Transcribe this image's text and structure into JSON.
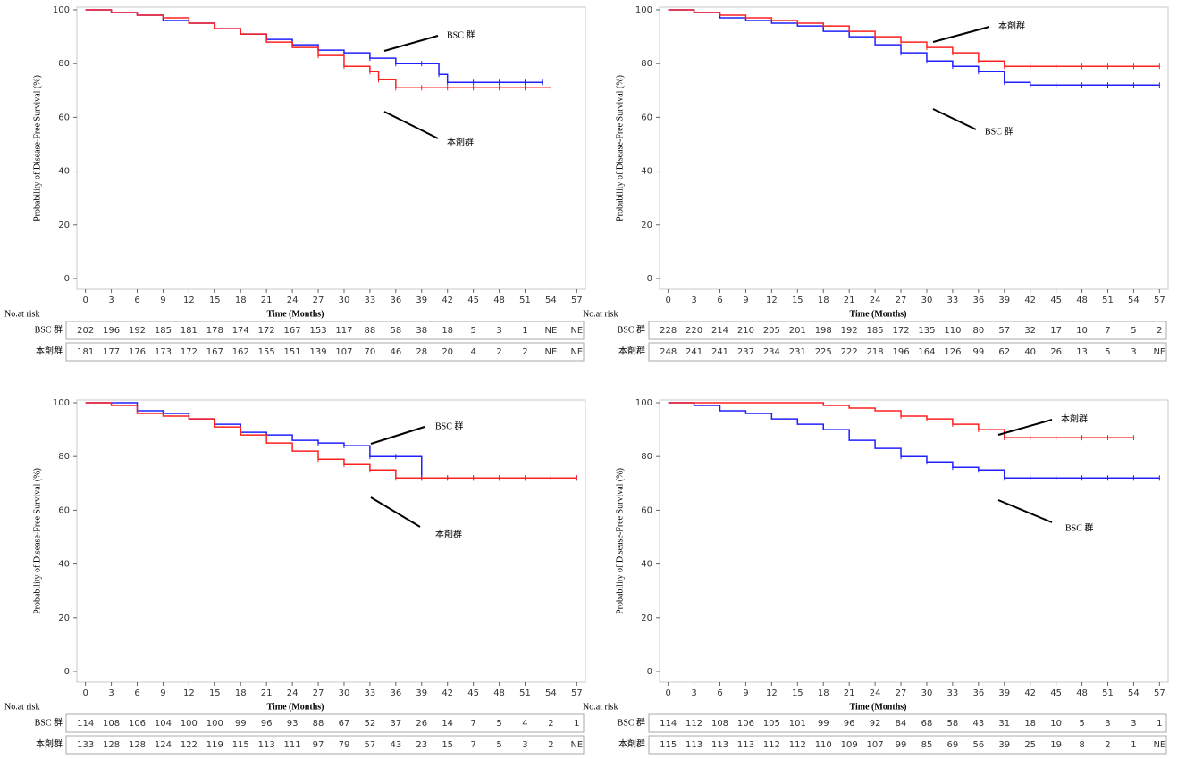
{
  "chart_data": [
    {
      "type": "line",
      "ylabel": "Probability of Disease-Free Survival (%)",
      "xlabel": "Time (Months)",
      "xlim": [
        -1,
        58
      ],
      "ylim": [
        -4,
        101
      ],
      "xticks": [
        0,
        3,
        6,
        9,
        12,
        15,
        18,
        21,
        24,
        27,
        30,
        33,
        36,
        39,
        42,
        45,
        48,
        51,
        54,
        57
      ],
      "yticks": [
        0,
        20,
        40,
        60,
        80,
        100
      ],
      "series": [
        {
          "name": "BSC 群",
          "color": "#2020ff",
          "x": [
            0,
            3,
            6,
            9,
            12,
            15,
            18,
            21,
            24,
            27,
            30,
            33,
            36,
            39,
            41,
            42,
            45,
            48,
            51,
            53
          ],
          "values": [
            100,
            99,
            98,
            96,
            95,
            93,
            91,
            89,
            87,
            85,
            84,
            82,
            80,
            80,
            76,
            73,
            73,
            73,
            73,
            73
          ]
        },
        {
          "name": "本剤群",
          "color": "#ff2020",
          "x": [
            0,
            3,
            6,
            9,
            12,
            15,
            18,
            21,
            24,
            27,
            30,
            33,
            34,
            36,
            39,
            42,
            45,
            48,
            51,
            54
          ],
          "values": [
            100,
            99,
            98,
            97,
            95,
            93,
            91,
            88,
            86,
            83,
            79,
            77,
            74,
            71,
            71,
            71,
            71,
            71,
            71,
            71
          ]
        }
      ],
      "annotations": [
        "BSC 群",
        "本剤群"
      ],
      "risk_table": {
        "title": "No.at risk",
        "rows": [
          {
            "name": "BSC 群",
            "values": [
              202,
              196,
              192,
              185,
              181,
              178,
              174,
              172,
              167,
              153,
              117,
              88,
              58,
              38,
              18,
              5,
              3,
              1,
              "NE",
              "NE"
            ]
          },
          {
            "name": "本剤群",
            "values": [
              181,
              177,
              176,
              173,
              172,
              167,
              162,
              155,
              151,
              139,
              107,
              70,
              46,
              28,
              20,
              4,
              2,
              2,
              "NE",
              "NE"
            ]
          }
        ]
      }
    },
    {
      "type": "line",
      "ylabel": "Probability of Disease-Free Survival (%)",
      "xlabel": "Time (Months)",
      "xlim": [
        -1,
        58
      ],
      "ylim": [
        -4,
        101
      ],
      "xticks": [
        0,
        3,
        6,
        9,
        12,
        15,
        18,
        21,
        24,
        27,
        30,
        33,
        36,
        39,
        42,
        45,
        48,
        51,
        54,
        57
      ],
      "yticks": [
        0,
        20,
        40,
        60,
        80,
        100
      ],
      "series": [
        {
          "name": "BSC 群",
          "color": "#2020ff",
          "x": [
            0,
            3,
            6,
            9,
            12,
            15,
            18,
            21,
            24,
            27,
            30,
            33,
            36,
            39,
            42,
            45,
            48,
            51,
            54,
            57
          ],
          "values": [
            100,
            99,
            97,
            96,
            95,
            94,
            92,
            90,
            87,
            84,
            81,
            79,
            77,
            73,
            72,
            72,
            72,
            72,
            72,
            72
          ]
        },
        {
          "name": "本剤群",
          "color": "#ff2020",
          "x": [
            0,
            3,
            6,
            9,
            12,
            15,
            18,
            21,
            24,
            27,
            30,
            33,
            36,
            39,
            42,
            45,
            48,
            51,
            54,
            57
          ],
          "values": [
            100,
            99,
            98,
            97,
            96,
            95,
            94,
            92,
            90,
            88,
            86,
            84,
            81,
            79,
            79,
            79,
            79,
            79,
            79,
            79
          ]
        }
      ],
      "annotations": [
        "本剤群",
        "BSC 群"
      ],
      "risk_table": {
        "title": "No.at risk",
        "rows": [
          {
            "name": "BSC 群",
            "values": [
              228,
              220,
              214,
              210,
              205,
              201,
              198,
              192,
              185,
              172,
              135,
              110,
              80,
              57,
              32,
              17,
              10,
              7,
              5,
              2
            ]
          },
          {
            "name": "本剤群",
            "values": [
              248,
              241,
              241,
              237,
              234,
              231,
              225,
              222,
              218,
              196,
              164,
              126,
              99,
              62,
              40,
              26,
              13,
              5,
              3,
              "NE"
            ]
          }
        ]
      }
    },
    {
      "type": "line",
      "ylabel": "Probability of Disease-Free Survival (%)",
      "xlabel": "Time (Months)",
      "xlim": [
        -1,
        58
      ],
      "ylim": [
        -4,
        101
      ],
      "xticks": [
        0,
        3,
        6,
        9,
        12,
        15,
        18,
        21,
        24,
        27,
        30,
        33,
        36,
        39,
        42,
        45,
        48,
        51,
        54,
        57
      ],
      "yticks": [
        0,
        20,
        40,
        60,
        80,
        100
      ],
      "series": [
        {
          "name": "BSC 群",
          "color": "#2020ff",
          "x": [
            0,
            3,
            6,
            9,
            12,
            15,
            18,
            21,
            24,
            27,
            30,
            33,
            36,
            39,
            42,
            45,
            48,
            51,
            54,
            57
          ],
          "values": [
            100,
            100,
            97,
            96,
            94,
            92,
            89,
            88,
            86,
            85,
            84,
            80,
            80,
            72,
            72,
            72,
            72,
            72,
            72,
            72
          ]
        },
        {
          "name": "本剤群",
          "color": "#ff2020",
          "x": [
            0,
            3,
            6,
            9,
            12,
            15,
            18,
            21,
            24,
            27,
            30,
            33,
            36,
            39,
            42,
            45,
            48,
            51,
            54,
            57
          ],
          "values": [
            100,
            99,
            96,
            95,
            94,
            91,
            88,
            85,
            82,
            79,
            77,
            75,
            72,
            72,
            72,
            72,
            72,
            72,
            72,
            72
          ]
        }
      ],
      "annotations": [
        "BSC 群",
        "本剤群"
      ],
      "risk_table": {
        "title": "No.at risk",
        "rows": [
          {
            "name": "BSC 群",
            "values": [
              114,
              108,
              106,
              104,
              100,
              100,
              99,
              96,
              93,
              88,
              67,
              52,
              37,
              26,
              14,
              7,
              5,
              4,
              2,
              1
            ]
          },
          {
            "name": "本剤群",
            "values": [
              133,
              128,
              128,
              124,
              122,
              119,
              115,
              113,
              111,
              97,
              79,
              57,
              43,
              23,
              15,
              7,
              5,
              3,
              2,
              "NE"
            ]
          }
        ]
      }
    },
    {
      "type": "line",
      "ylabel": "Probability of Disease-Free Survival (%)",
      "xlabel": "Time (Months)",
      "xlim": [
        -1,
        58
      ],
      "ylim": [
        -4,
        101
      ],
      "xticks": [
        0,
        3,
        6,
        9,
        12,
        15,
        18,
        21,
        24,
        27,
        30,
        33,
        36,
        39,
        42,
        45,
        48,
        51,
        54,
        57
      ],
      "yticks": [
        0,
        20,
        40,
        60,
        80,
        100
      ],
      "series": [
        {
          "name": "BSC 群",
          "color": "#2020ff",
          "x": [
            0,
            3,
            6,
            9,
            12,
            15,
            18,
            21,
            24,
            27,
            30,
            33,
            36,
            39,
            42,
            45,
            48,
            51,
            54,
            57
          ],
          "values": [
            100,
            99,
            97,
            96,
            94,
            92,
            90,
            86,
            83,
            80,
            78,
            76,
            75,
            72,
            72,
            72,
            72,
            72,
            72,
            72
          ]
        },
        {
          "name": "本剤群",
          "color": "#ff2020",
          "x": [
            0,
            3,
            6,
            9,
            12,
            15,
            18,
            21,
            24,
            27,
            30,
            33,
            36,
            39,
            42,
            45,
            48,
            51,
            54
          ],
          "values": [
            100,
            100,
            100,
            100,
            100,
            100,
            99,
            98,
            97,
            95,
            94,
            92,
            90,
            87,
            87,
            87,
            87,
            87,
            87
          ]
        }
      ],
      "annotations": [
        "本剤群",
        "BSC 群"
      ],
      "risk_table": {
        "title": "No.at risk",
        "rows": [
          {
            "name": "BSC 群",
            "values": [
              114,
              112,
              108,
              106,
              105,
              101,
              99,
              96,
              92,
              84,
              68,
              58,
              43,
              31,
              18,
              10,
              5,
              3,
              3,
              1
            ]
          },
          {
            "name": "本剤群",
            "values": [
              115,
              113,
              113,
              113,
              112,
              112,
              110,
              109,
              107,
              99,
              85,
              69,
              56,
              39,
              25,
              19,
              8,
              2,
              1,
              "NE"
            ]
          }
        ]
      }
    }
  ]
}
